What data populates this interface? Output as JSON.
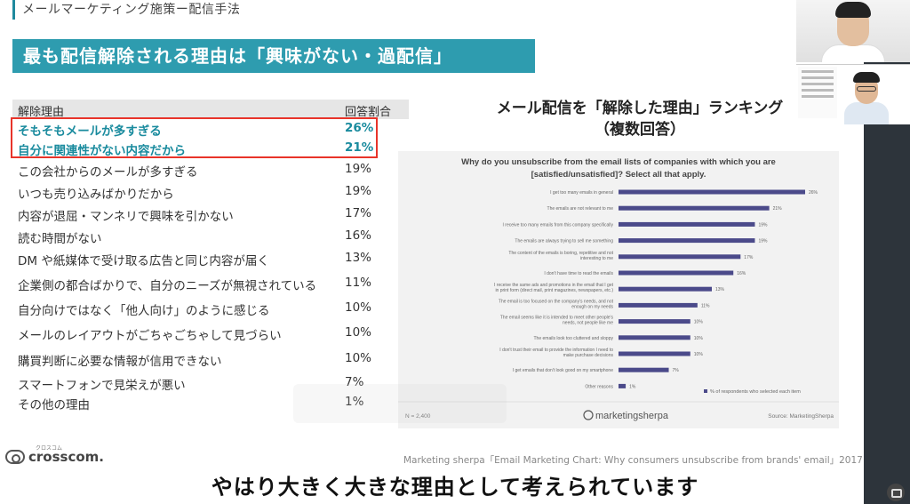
{
  "header": {
    "section_title": "メールマーケティング施策ー配信手法"
  },
  "banner": {
    "title": "最も配信解除される理由は「興味がない・過配信」"
  },
  "table": {
    "col_reason": "解除理由",
    "col_rate": "回答割合",
    "rows": [
      {
        "label": "そもそもメールが多すぎる",
        "rate": "26%"
      },
      {
        "label": "自分に関連性がない内容だから",
        "rate": "21%"
      },
      {
        "label": "この会社からのメールが多すぎる",
        "rate": "19%"
      },
      {
        "label": "いつも売り込みばかりだから",
        "rate": "19%"
      },
      {
        "label": "内容が退屈・マンネリで興味を引かない",
        "rate": "17%"
      },
      {
        "label": "読む時間がない",
        "rate": "16%"
      },
      {
        "label": "DM や紙媒体で受け取る広告と同じ内容が届く",
        "rate": "13%"
      },
      {
        "label": "企業側の都合ばかりで、自分のニーズが無視されている",
        "rate": "11%"
      },
      {
        "label": "自分向けではなく「他人向け」のように感じる",
        "rate": "10%"
      },
      {
        "label": "メールのレイアウトがごちゃごちゃして見づらい",
        "rate": "10%"
      },
      {
        "label": "購買判断に必要な情報が信用できない",
        "rate": "10%"
      },
      {
        "label": "スマートフォンで見栄えが悪い",
        "rate": "7%"
      },
      {
        "label": "その他の理由",
        "rate": "1%"
      }
    ]
  },
  "ranking": {
    "title_line1": "メール配信を「解除した理由」ランキング",
    "title_line2": "（複数回答）"
  },
  "chart_data": {
    "type": "bar",
    "orientation": "horizontal",
    "title_line1": "Why do you unsubscribe from the email lists of companies with which you are",
    "title_line2": "[satisfied/unsatisfied]? Select all that apply.",
    "categories": [
      "I get too many emails in general",
      "The emails are not relevant to me",
      "I receive too many emails from this company specifically",
      "The emails are always trying to sell me something",
      "The content of the emails is boring, repetitive and not interesting to me",
      "I don't have time to read the emails",
      "I receive the same ads and promotions in the email that I get in print form (direct mail, print magazines, newspapers, etc.)",
      "The email is too focused on the company's needs, and not enough on my needs",
      "The email seems like it is intended to meet other people's needs, not people like me",
      "The emails look too cluttered and sloppy",
      "I don't trust their email to provide the information I need to make purchase decisions",
      "I get emails that don't look good on my smartphone",
      "Other reasons"
    ],
    "values": [
      26,
      21,
      19,
      19,
      17,
      16,
      13,
      11,
      10,
      10,
      10,
      7,
      1
    ],
    "value_labels": [
      "26%",
      "21%",
      "19%",
      "19%",
      "17%",
      "16%",
      "13%",
      "11%",
      "10%",
      "10%",
      "10%",
      "7%",
      "1%"
    ],
    "legend": "% of respondents who selected each item",
    "legend_position": "bottom-right",
    "n_label": "N = 2,400",
    "brand": "marketingsherpa",
    "source": "Source: MarketingSherpa",
    "bar_color": "#4b4a8a",
    "xlim": [
      0,
      26
    ]
  },
  "caption": "Marketing sherpa「Email Marketing Chart: Why consumers unsubscribe from brands' email」2017",
  "logo": {
    "name": "crosscom.",
    "kana": "クロスコム"
  },
  "subtitle": "やはり大きく大きな理由として考えられています",
  "accent": "#2e9caf",
  "highlight_color": "#e8342a"
}
